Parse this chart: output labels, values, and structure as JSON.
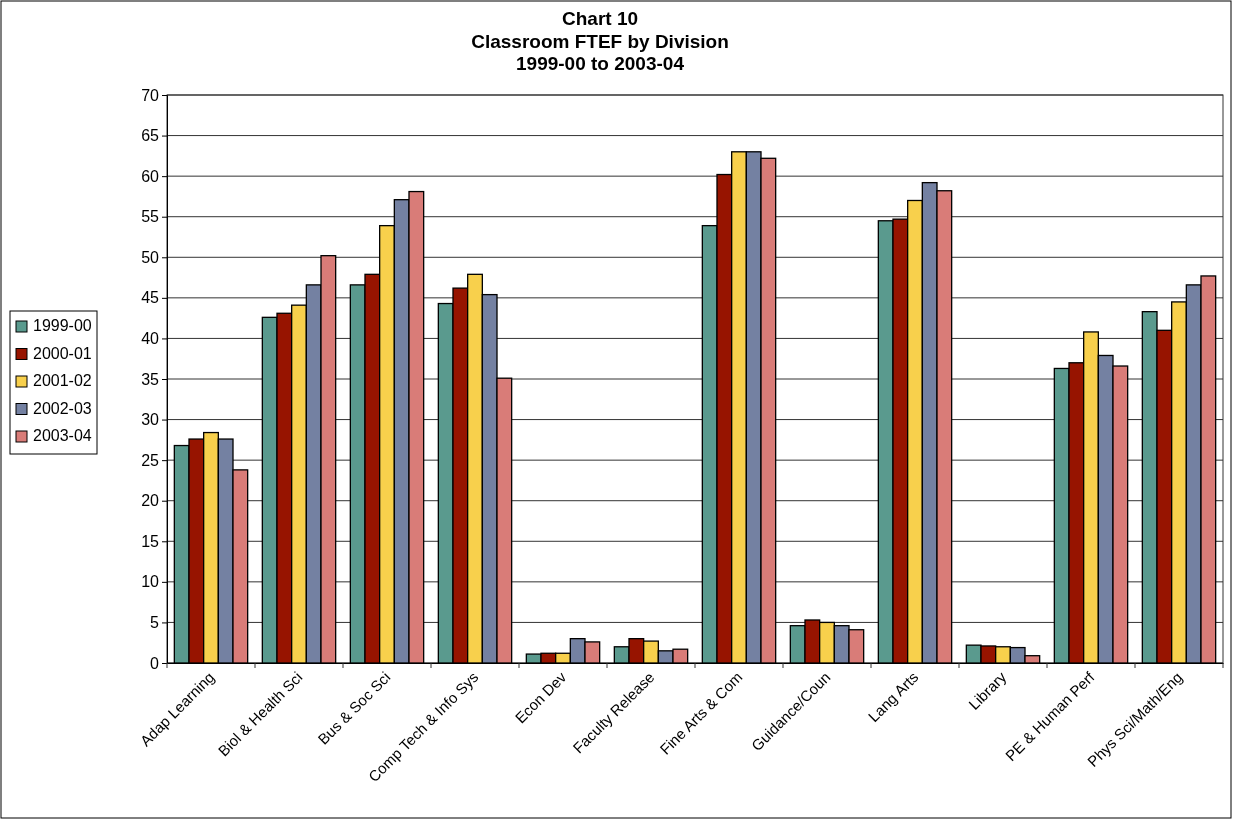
{
  "chart_data": {
    "type": "bar",
    "title": "Chart 10\nClassroom FTEF by Division\n1999-00 to 2003-04",
    "categories": [
      "Adap Learning",
      "Biol & Health Sci",
      "Bus & Soc Sci",
      "Comp Tech & Info Sys",
      "Econ Dev",
      "Faculty Release",
      "Fine Arts & Com",
      "Guidance/Coun",
      "Lang Arts",
      "Library",
      "PE & Human Perf",
      "Phys Sci/Math/Eng"
    ],
    "series": [
      {
        "name": "1999-00",
        "color": "#5a9a8e",
        "values": [
          26.8,
          42.6,
          46.6,
          44.3,
          1.1,
          2.0,
          53.9,
          4.6,
          54.5,
          2.2,
          36.3,
          43.3
        ]
      },
      {
        "name": "2000-01",
        "color": "#971400",
        "values": [
          27.6,
          43.1,
          47.9,
          46.2,
          1.2,
          3.0,
          60.2,
          5.3,
          54.7,
          2.1,
          37.0,
          41.0
        ]
      },
      {
        "name": "2001-02",
        "color": "#f8d04c",
        "values": [
          28.4,
          44.1,
          53.9,
          47.9,
          1.2,
          2.7,
          63.0,
          5.0,
          57.0,
          2.0,
          40.8,
          44.5
        ]
      },
      {
        "name": "2002-03",
        "color": "#7481a2",
        "values": [
          27.6,
          46.6,
          57.1,
          45.4,
          3.0,
          1.5,
          63.0,
          4.6,
          59.2,
          1.9,
          37.9,
          46.6
        ]
      },
      {
        "name": "2003-04",
        "color": "#d97c78",
        "values": [
          23.8,
          50.2,
          58.1,
          35.1,
          2.6,
          1.7,
          62.2,
          4.1,
          58.2,
          0.9,
          36.6,
          47.7
        ]
      }
    ],
    "ylim": [
      0,
      70
    ],
    "yticks": [
      0,
      5,
      10,
      15,
      20,
      25,
      30,
      35,
      40,
      45,
      50,
      55,
      60,
      65,
      70
    ],
    "grid": "y",
    "legend": "left"
  }
}
